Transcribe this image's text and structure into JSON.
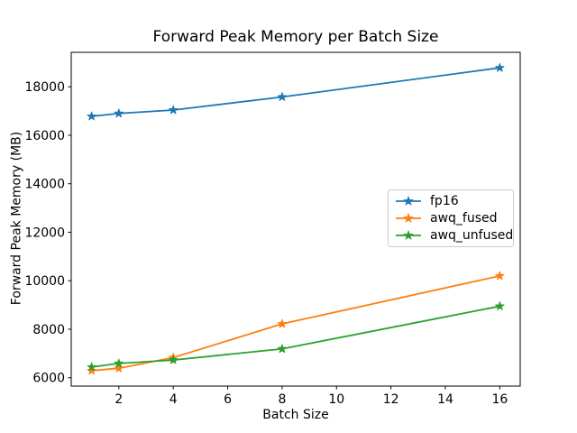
{
  "chart_data": {
    "type": "line",
    "title": "Forward Peak Memory per Batch Size",
    "xlabel": "Batch Size",
    "ylabel": "Forward Peak Memory (MB)",
    "x": [
      1,
      2,
      4,
      8,
      16
    ],
    "series": [
      {
        "name": "fp16",
        "color": "#1f77b4",
        "values": [
          16780,
          16900,
          17040,
          17580,
          18780
        ]
      },
      {
        "name": "awq_fused",
        "color": "#ff7f0e",
        "values": [
          6290,
          6390,
          6830,
          8220,
          10200
        ]
      },
      {
        "name": "awq_unfused",
        "color": "#2ca02c",
        "values": [
          6440,
          6590,
          6730,
          7190,
          8950
        ]
      }
    ],
    "marker": "star",
    "xticks": [
      2,
      4,
      6,
      8,
      10,
      12,
      14,
      16
    ],
    "yticks": [
      6000,
      8000,
      10000,
      12000,
      14000,
      16000,
      18000
    ],
    "xlim": [
      0.25,
      16.75
    ],
    "ylim": [
      5655,
      19420
    ],
    "grid": false,
    "legend_position": "center right",
    "axis_color": "#000000",
    "legend_border_color": "#cccccc",
    "background_color": "#ffffff"
  }
}
